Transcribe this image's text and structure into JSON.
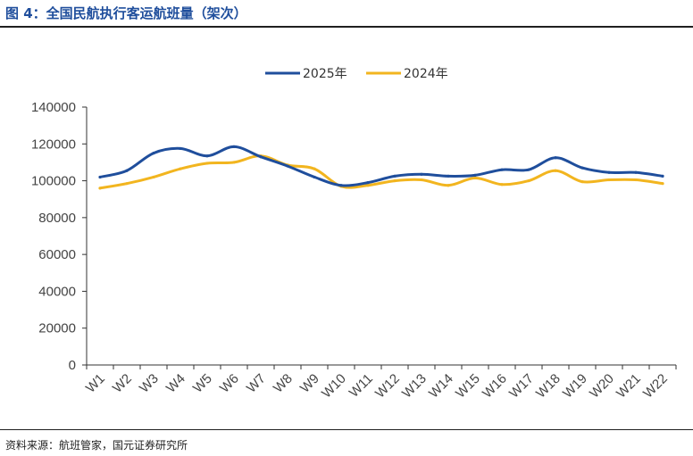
{
  "figure": {
    "title": "图 4：全国民航执行客运航班量（架次）",
    "source": "资料来源：航班管家，国元证券研究所"
  },
  "chart_data": {
    "type": "line",
    "title": "",
    "xlabel": "",
    "ylabel": "",
    "ylim": [
      0,
      140000
    ],
    "yticks": [
      "0",
      "20000",
      "40000",
      "60000",
      "80000",
      "100000",
      "120000",
      "140000"
    ],
    "categories": [
      "W1",
      "W2",
      "W3",
      "W4",
      "W5",
      "W6",
      "W7",
      "W8",
      "W9",
      "W10",
      "W11",
      "W12",
      "W13",
      "W14",
      "W15",
      "W16",
      "W17",
      "W18",
      "W19",
      "W20",
      "W21",
      "W22"
    ],
    "grid": false,
    "legend": "top-center",
    "series": [
      {
        "name": "2025年",
        "color": "#1f4e9c",
        "values": [
          102000,
          105500,
          115000,
          117500,
          113500,
          118500,
          113000,
          108000,
          102000,
          97500,
          99000,
          102500,
          103500,
          102500,
          103000,
          106000,
          106000,
          112500,
          107000,
          104500,
          104500,
          102500
        ]
      },
      {
        "name": "2024年",
        "color": "#f2b51f",
        "values": [
          96000,
          98500,
          102000,
          106500,
          109500,
          110000,
          113500,
          108500,
          106500,
          97000,
          97500,
          100000,
          100500,
          97500,
          101500,
          98000,
          100000,
          105500,
          99500,
          100500,
          100500,
          98500
        ]
      }
    ]
  }
}
